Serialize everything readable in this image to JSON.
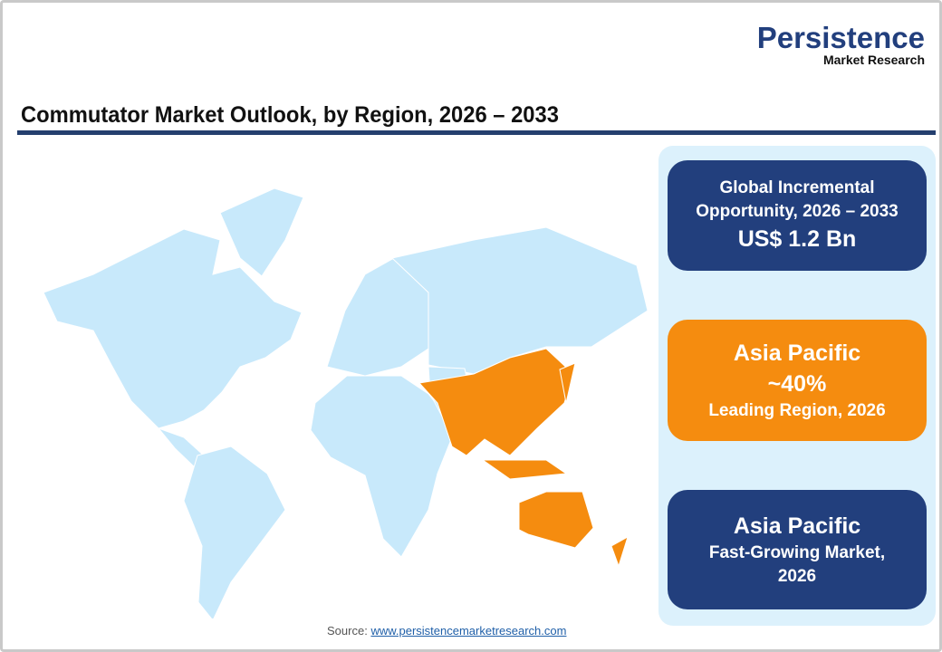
{
  "logo": {
    "main": "Persistence",
    "sub": "Market Research"
  },
  "title": "Commutator Market Outlook, by Region, 2026 – 2033",
  "map": {
    "highlighted_region": "Asia Pacific",
    "base_color": "#c8e9fb",
    "highlight_color": "#f58c0f"
  },
  "cards": [
    {
      "line1": "Global Incremental",
      "line2": "Opportunity, 2026 – 2033",
      "value": "US$ 1.2 Bn",
      "color": "#223f7d"
    },
    {
      "line1": "Asia Pacific",
      "value": "~40%",
      "line2": "Leading Region, 2026",
      "color": "#f58c0f"
    },
    {
      "line1": "Asia Pacific",
      "line2": "Fast-Growing Market,",
      "line3": "2026",
      "color": "#223f7d"
    }
  ],
  "source": {
    "label": "Source:",
    "link": "www.persistencemarketresearch.com"
  }
}
